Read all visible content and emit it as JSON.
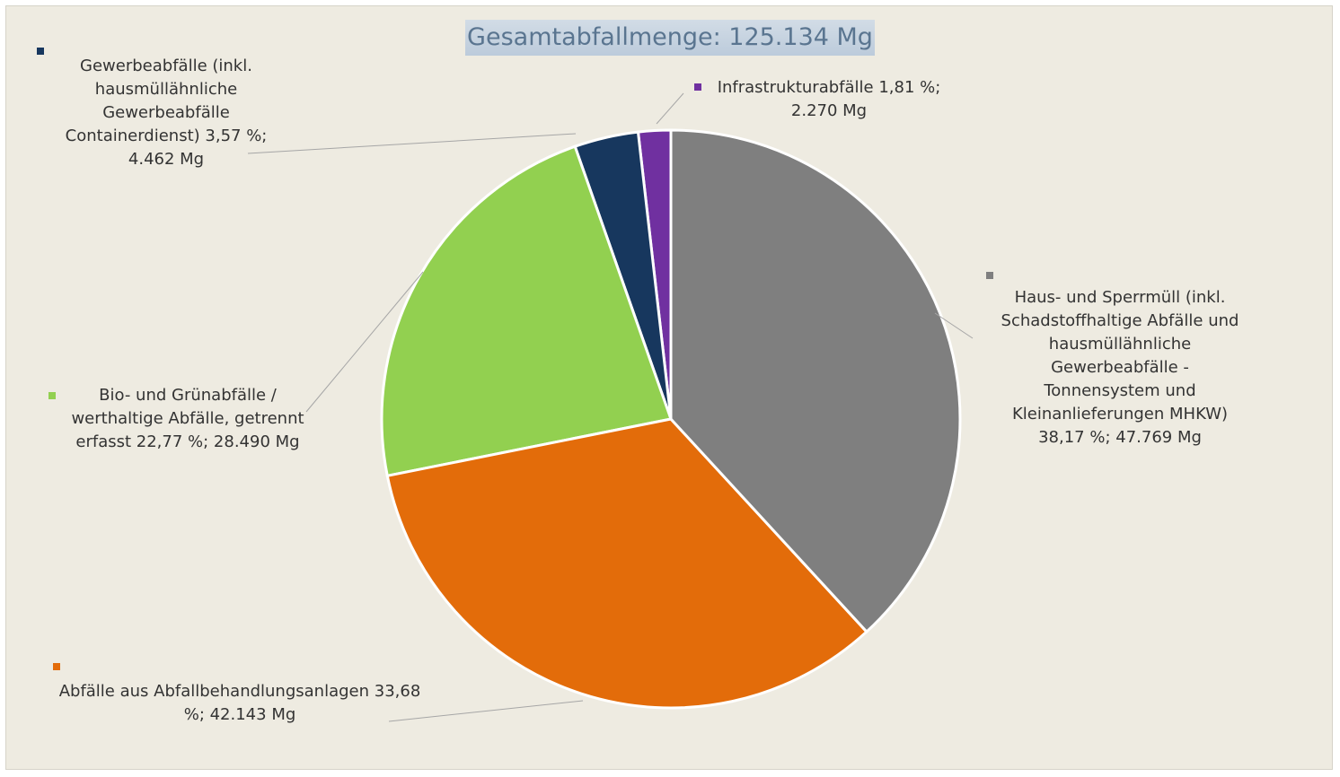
{
  "chart_data": {
    "type": "pie",
    "title": "Gesamtabfallmenge:  125.134 Mg",
    "categories": [
      "Haus- und Sperrmüll (inkl. Schadstoffhaltige Abfälle und hausmüllähnliche Gewerbeabfälle - Tonnensystem und Kleinanlieferungen MHKW)",
      "Abfälle aus Abfallbehandlungsanlagen",
      "Bio- und Grünabfälle / werthaltige Abfälle, getrennt erfasst",
      "Gewerbeabfälle (inkl. hausmüllähnliche Gewerbeabfälle Containerdienst)",
      "Infrastrukturabfälle"
    ],
    "values": [
      38.17,
      33.68,
      22.77,
      3.57,
      1.81
    ],
    "value_labels": [
      "38,17 %; 47.769 Mg",
      "33,68 %; 42.143 Mg",
      "22,77 %; 28.490 Mg",
      "3,57 %; 4.462 Mg",
      "1,81 %; 2.270 Mg"
    ],
    "colors": [
      "#7f7f7f",
      "#e36c0a",
      "#92d050",
      "#17375e",
      "#7030a0"
    ]
  }
}
